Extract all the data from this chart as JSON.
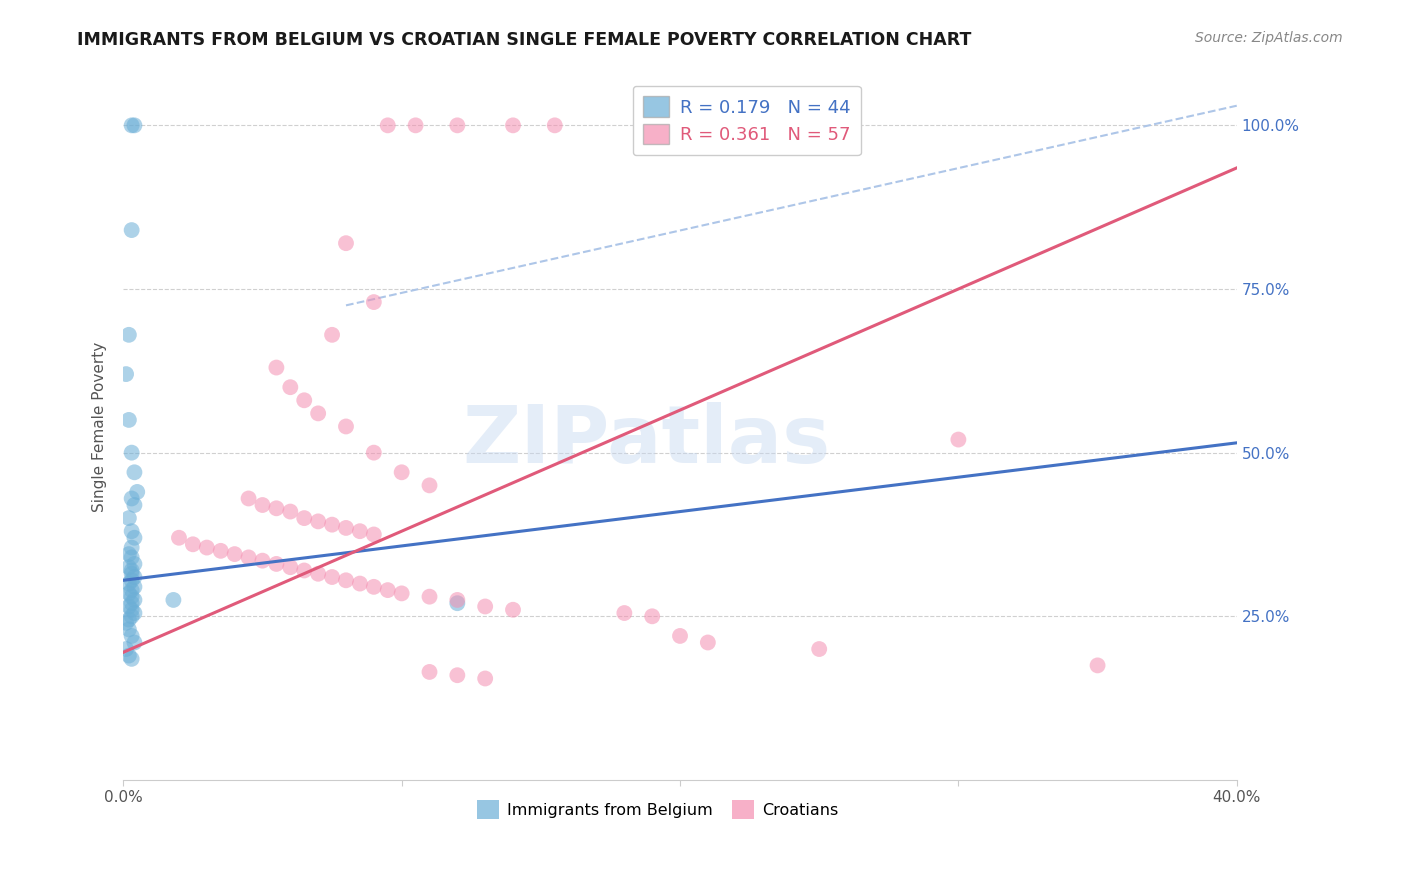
{
  "title": "IMMIGRANTS FROM BELGIUM VS CROATIAN SINGLE FEMALE POVERTY CORRELATION CHART",
  "source": "Source: ZipAtlas.com",
  "ylabel": "Single Female Poverty",
  "xlim": [
    0.0,
    0.4
  ],
  "ylim": [
    0.0,
    1.08
  ],
  "belgium_color": "#6baed6",
  "croatian_color": "#f48fb1",
  "regression_blue_color": "#4472c4",
  "regression_pink_color": "#e05a7a",
  "dashed_line_color": "#aec6e8",
  "R_belgium": 0.179,
  "N_belgium": 44,
  "R_croatian": 0.361,
  "N_croatian": 57,
  "legend_label_belgium": "Immigrants from Belgium",
  "legend_label_croatian": "Croatians",
  "watermark": "ZIPatlas",
  "blue_line_x0": 0.0,
  "blue_line_y0": 0.305,
  "blue_line_x1": 0.4,
  "blue_line_y1": 0.515,
  "pink_line_x0": 0.0,
  "pink_line_y0": 0.195,
  "pink_line_x1": 0.4,
  "pink_line_y1": 0.935,
  "dash_line_x0": 0.08,
  "dash_line_y0": 0.725,
  "dash_line_x1": 0.4,
  "dash_line_y1": 1.03,
  "belgium_scatter_x": [
    0.003,
    0.004,
    0.003,
    0.002,
    0.001,
    0.002,
    0.003,
    0.004,
    0.005,
    0.003,
    0.004,
    0.002,
    0.003,
    0.004,
    0.003,
    0.002,
    0.003,
    0.004,
    0.002,
    0.003,
    0.003,
    0.004,
    0.003,
    0.002,
    0.004,
    0.003,
    0.002,
    0.003,
    0.004,
    0.003,
    0.002,
    0.003,
    0.004,
    0.003,
    0.002,
    0.001,
    0.002,
    0.003,
    0.004,
    0.12,
    0.018,
    0.001,
    0.002,
    0.003
  ],
  "belgium_scatter_y": [
    1.0,
    1.0,
    0.84,
    0.68,
    0.62,
    0.55,
    0.5,
    0.47,
    0.44,
    0.43,
    0.42,
    0.4,
    0.38,
    0.37,
    0.355,
    0.345,
    0.34,
    0.33,
    0.325,
    0.32,
    0.315,
    0.31,
    0.305,
    0.3,
    0.295,
    0.29,
    0.285,
    0.28,
    0.275,
    0.27,
    0.265,
    0.26,
    0.255,
    0.25,
    0.245,
    0.24,
    0.23,
    0.22,
    0.21,
    0.27,
    0.275,
    0.2,
    0.19,
    0.185
  ],
  "croatian_scatter_x": [
    0.095,
    0.105,
    0.12,
    0.14,
    0.155,
    0.08,
    0.09,
    0.075,
    0.055,
    0.06,
    0.065,
    0.07,
    0.08,
    0.09,
    0.1,
    0.11,
    0.045,
    0.05,
    0.055,
    0.06,
    0.065,
    0.07,
    0.075,
    0.08,
    0.085,
    0.09,
    0.02,
    0.025,
    0.03,
    0.035,
    0.04,
    0.045,
    0.05,
    0.055,
    0.06,
    0.065,
    0.07,
    0.075,
    0.08,
    0.085,
    0.09,
    0.095,
    0.1,
    0.11,
    0.12,
    0.13,
    0.14,
    0.18,
    0.19,
    0.2,
    0.21,
    0.25,
    0.3,
    0.35,
    0.11,
    0.12,
    0.13
  ],
  "croatian_scatter_y": [
    1.0,
    1.0,
    1.0,
    1.0,
    1.0,
    0.82,
    0.73,
    0.68,
    0.63,
    0.6,
    0.58,
    0.56,
    0.54,
    0.5,
    0.47,
    0.45,
    0.43,
    0.42,
    0.415,
    0.41,
    0.4,
    0.395,
    0.39,
    0.385,
    0.38,
    0.375,
    0.37,
    0.36,
    0.355,
    0.35,
    0.345,
    0.34,
    0.335,
    0.33,
    0.325,
    0.32,
    0.315,
    0.31,
    0.305,
    0.3,
    0.295,
    0.29,
    0.285,
    0.28,
    0.275,
    0.265,
    0.26,
    0.255,
    0.25,
    0.22,
    0.21,
    0.2,
    0.52,
    0.175,
    0.165,
    0.16,
    0.155
  ]
}
